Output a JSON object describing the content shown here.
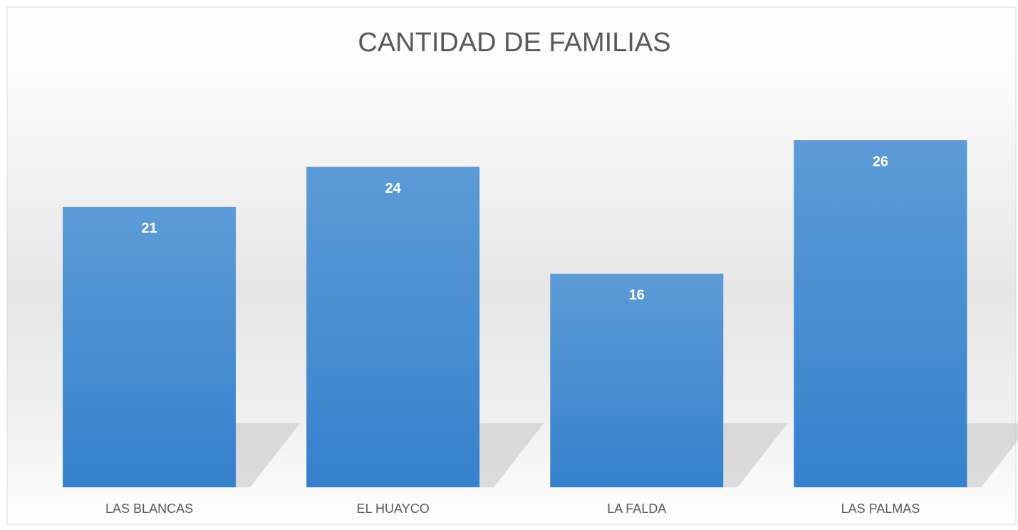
{
  "chart_data": {
    "type": "bar",
    "title": "CANTIDAD DE FAMILIAS",
    "categories": [
      "LAS BLANCAS",
      "EL HUAYCO",
      "LA FALDA",
      "LAS PALMAS"
    ],
    "values": [
      21,
      24,
      16,
      26
    ],
    "color": "#4a8fd2",
    "ylim": [
      0,
      30
    ],
    "grid": false
  }
}
